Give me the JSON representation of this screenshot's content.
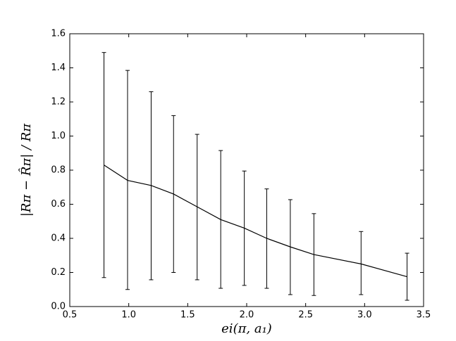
{
  "chart_data": {
    "type": "errorbar-line",
    "xlabel": "ei(π, a₁)",
    "ylabel": "|Rπ − R̂π| / Rπ",
    "x": [
      0.79,
      0.99,
      1.19,
      1.38,
      1.58,
      1.78,
      1.98,
      2.17,
      2.37,
      2.57,
      2.97,
      3.36
    ],
    "values": [
      0.83,
      0.74,
      0.71,
      0.66,
      0.585,
      0.51,
      0.46,
      0.4,
      0.35,
      0.305,
      0.25,
      0.175
    ],
    "lower": [
      0.17,
      0.1,
      0.157,
      0.2,
      0.157,
      0.107,
      0.124,
      0.107,
      0.07,
      0.065,
      0.07,
      0.037
    ],
    "upper": [
      1.49,
      1.385,
      1.26,
      1.12,
      1.01,
      0.915,
      0.795,
      0.69,
      0.627,
      0.545,
      0.44,
      0.313
    ],
    "color": "#000000",
    "xlim": [
      0.5,
      3.5
    ],
    "xticks": [
      0.5,
      {
        "value": 1,
        "label": "1.0"
      },
      1.5,
      {
        "value": 2,
        "label": "2.0"
      },
      2.5,
      {
        "value": 3,
        "label": "3.0"
      },
      3.5
    ],
    "ylim": [
      0,
      1.6
    ],
    "yticks": [
      {
        "value": 0,
        "label": "0.0"
      },
      0.2,
      0.4,
      0.6,
      0.8,
      {
        "value": 1,
        "label": "1.0"
      },
      1.2,
      1.4,
      1.6
    ],
    "grid": false
  }
}
